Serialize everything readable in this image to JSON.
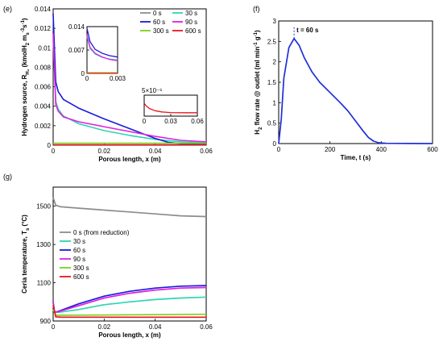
{
  "panel_labels": {
    "e": "(e)",
    "f": "(f)",
    "g": "(g)"
  },
  "chart_data": [
    {
      "id": "e",
      "type": "line",
      "xlabel": "Porous length, x (m)",
      "ylabel_html": "Hydrogen source, R<tspan baseline-shift='sub' font-size='6'>H₂</tspan> (kmolH<tspan baseline-shift='sub' font-size='6'>2</tspan> m<tspan baseline-shift='sub' font-size='6'>s</tspan><tspan baseline-shift='super' font-size='6'>-3</tspan>s<tspan baseline-shift='super' font-size='6'>-1</tspan>)",
      "xlim": [
        0,
        0.06
      ],
      "ylim": [
        0,
        0.014
      ],
      "xticks": [
        "0",
        "0.02",
        "0.04",
        "0.06"
      ],
      "yticks": [
        "0",
        "0.002",
        "0.004",
        "0.006",
        "0.008",
        "0.01",
        "0.012",
        "0.014"
      ],
      "legend_cols": 2,
      "series": [
        {
          "name": "0 s",
          "color": "#8c8c8c",
          "x": [
            0,
            0.06
          ],
          "y": [
            0,
            0
          ]
        },
        {
          "name": "30 s",
          "color": "#2fd5b0",
          "x": [
            0,
            0.001,
            0.002,
            0.004,
            0.01,
            0.02,
            0.03,
            0.04,
            0.05,
            0.06
          ],
          "y": [
            0.011,
            0.0045,
            0.0037,
            0.003,
            0.0022,
            0.0015,
            0.001,
            0.0006,
            0.00035,
            0.00025
          ]
        },
        {
          "name": "60 s",
          "color": "#1a1adc",
          "x": [
            0,
            0.001,
            0.002,
            0.004,
            0.01,
            0.02,
            0.03,
            0.04,
            0.045,
            0.05,
            0.06
          ],
          "y": [
            0.0135,
            0.0065,
            0.0055,
            0.0047,
            0.0038,
            0.0027,
            0.0017,
            0.0007,
            0.0003,
            0.00015,
            0.0001
          ]
        },
        {
          "name": "90 s",
          "color": "#e020e0",
          "x": [
            0,
            0.001,
            0.002,
            0.004,
            0.01,
            0.02,
            0.03,
            0.04,
            0.05,
            0.06
          ],
          "y": [
            0.0115,
            0.0042,
            0.0035,
            0.0029,
            0.0024,
            0.0019,
            0.0014,
            0.0009,
            0.0005,
            0.00035
          ]
        },
        {
          "name": "300 s",
          "color": "#7fcf1f",
          "x": [
            0,
            0.06
          ],
          "y": [
            0.0002,
            0.0002
          ]
        },
        {
          "name": "600 s",
          "color": "#e8161b",
          "x": [
            0,
            0.06
          ],
          "y": [
            3e-05,
            3e-05
          ]
        }
      ],
      "insets": [
        {
          "xlim": [
            0,
            0.003
          ],
          "ylim": [
            0,
            0.014
          ],
          "xticks": [
            "0",
            "0.003"
          ],
          "yticks": [
            "0",
            "0.007",
            "0.014"
          ],
          "series": [
            {
              "color": "#8c8c8c",
              "x": [
                0,
                0.003
              ],
              "y": [
                0,
                0
              ]
            },
            {
              "color": "#2fd5b0",
              "x": [
                0,
                0.0003,
                0.0008,
                0.0015,
                0.0022,
                0.003
              ],
              "y": [
                0.011,
                0.0075,
                0.0058,
                0.0048,
                0.0043,
                0.004
              ]
            },
            {
              "color": "#1a1adc",
              "x": [
                0,
                0.0003,
                0.0008,
                0.0015,
                0.0022,
                0.003
              ],
              "y": [
                0.0135,
                0.0095,
                0.0072,
                0.006,
                0.0053,
                0.0049
              ]
            },
            {
              "color": "#e020e0",
              "x": [
                0,
                0.0003,
                0.0008,
                0.0015,
                0.0022,
                0.003
              ],
              "y": [
                0.0115,
                0.0078,
                0.006,
                0.0049,
                0.0042,
                0.0038
              ]
            },
            {
              "color": "#7fcf1f",
              "x": [
                0,
                0.003
              ],
              "y": [
                0.0002,
                0.0002
              ]
            },
            {
              "color": "#e8161b",
              "x": [
                0,
                0.003
              ],
              "y": [
                3e-05,
                3e-05
              ]
            }
          ]
        },
        {
          "scale_label": "5×10⁻⁶",
          "xlim": [
            0,
            0.06
          ],
          "ylim": [
            0,
            5
          ],
          "xticks": [
            "0",
            "0.03",
            "0.06"
          ],
          "yticks": [],
          "series": [
            {
              "color": "#e8161b",
              "x": [
                0,
                0.002,
                0.006,
                0.012,
                0.02,
                0.03,
                0.045,
                0.06
              ],
              "y": [
                3.1,
                2.5,
                1.8,
                1.3,
                1.0,
                0.85,
                0.8,
                0.8
              ]
            }
          ]
        }
      ]
    },
    {
      "id": "f",
      "type": "line",
      "xlabel": "Time, t (s)",
      "ylabel_html": "H<tspan baseline-shift='sub' font-size='6'>2</tspan> flow rate @ outlet (ml min<tspan baseline-shift='super' font-size='6'>-1</tspan> g<tspan baseline-shift='super' font-size='6'>-1</tspan>)",
      "xlim": [
        0,
        600
      ],
      "ylim": [
        0,
        3
      ],
      "xticks": [
        "0",
        "200",
        "400",
        "600"
      ],
      "yticks": [
        "0",
        "0.5",
        "1",
        "1.5",
        "2",
        "2.5",
        "3"
      ],
      "annotation": "t = 60 s",
      "annotation_x": 60,
      "series": [
        {
          "name": "",
          "color": "#1f2fd8",
          "x": [
            0,
            10,
            20,
            40,
            60,
            80,
            100,
            130,
            160,
            200,
            240,
            270,
            300,
            330,
            350,
            370,
            390,
            420,
            600
          ],
          "y": [
            0,
            0.6,
            1.6,
            2.35,
            2.57,
            2.4,
            2.1,
            1.75,
            1.5,
            1.25,
            1.0,
            0.8,
            0.55,
            0.3,
            0.15,
            0.06,
            0.02,
            0.005,
            0
          ]
        }
      ]
    },
    {
      "id": "g",
      "type": "line",
      "xlabel": "Porous length, x (m)",
      "ylabel_html": "Ceria temperature, T<tspan baseline-shift='sub' font-size='6'>s</tspan> (°C)",
      "xlim": [
        0,
        0.06
      ],
      "ylim": [
        900,
        1600
      ],
      "xticks": [
        "0",
        "0.02",
        "0.04",
        "0.06"
      ],
      "yticks": [
        "900",
        "1100",
        "1300",
        "1500"
      ],
      "ytick_values": [
        900,
        1100,
        1300,
        1500
      ],
      "legend_cols": 1,
      "series": [
        {
          "name": "0 s (from reduction)",
          "color": "#8c8c8c",
          "x": [
            0,
            0.001,
            0.003,
            0.01,
            0.02,
            0.03,
            0.04,
            0.05,
            0.06
          ],
          "y": [
            1545,
            1505,
            1497,
            1490,
            1480,
            1470,
            1460,
            1450,
            1446
          ]
        },
        {
          "name": "30 s",
          "color": "#2fd5b0",
          "x": [
            0,
            0.0005,
            0.002,
            0.01,
            0.02,
            0.03,
            0.04,
            0.05,
            0.06
          ],
          "y": [
            1000,
            950,
            945,
            960,
            985,
            1000,
            1012,
            1020,
            1025
          ]
        },
        {
          "name": "60 s",
          "color": "#1a1adc",
          "x": [
            0,
            0.0005,
            0.002,
            0.01,
            0.02,
            0.03,
            0.04,
            0.05,
            0.06
          ],
          "y": [
            1000,
            945,
            950,
            990,
            1030,
            1055,
            1072,
            1082,
            1085
          ]
        },
        {
          "name": "90 s",
          "color": "#e020e0",
          "x": [
            0,
            0.0005,
            0.002,
            0.01,
            0.02,
            0.03,
            0.04,
            0.05,
            0.06
          ],
          "y": [
            1000,
            945,
            948,
            980,
            1020,
            1045,
            1062,
            1072,
            1075
          ]
        },
        {
          "name": "300 s",
          "color": "#7fcf1f",
          "x": [
            0,
            0.001,
            0.003,
            0.06
          ],
          "y": [
            960,
            930,
            930,
            935
          ]
        },
        {
          "name": "600 s",
          "color": "#e8161b",
          "x": [
            0,
            0.001,
            0.003,
            0.06
          ],
          "y": [
            985,
            922,
            920,
            920
          ]
        }
      ]
    }
  ]
}
